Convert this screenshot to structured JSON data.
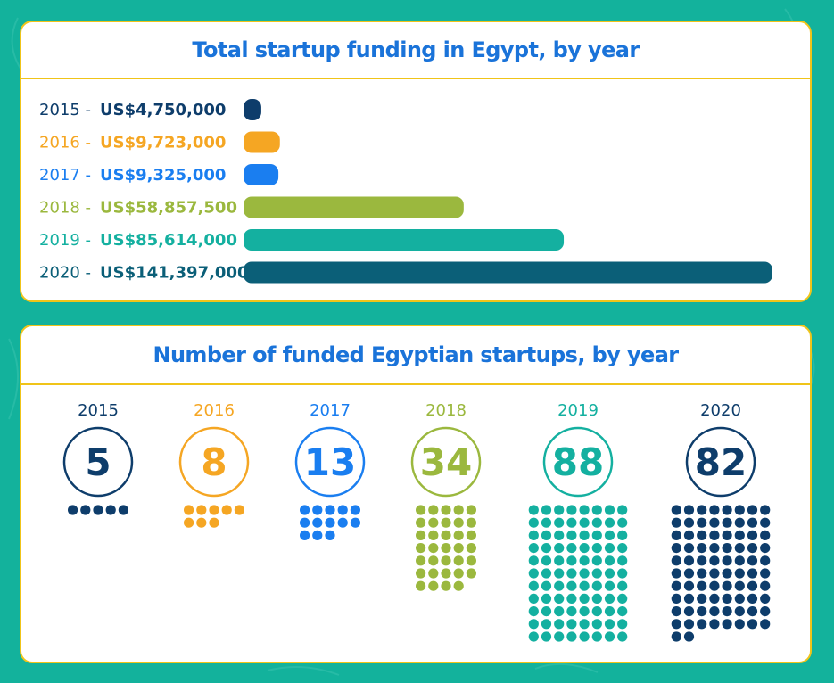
{
  "colors": {
    "background": "#13b29c",
    "border": "#f0c419",
    "title": "#1a73d9",
    "y2015": "#0e3d6b",
    "y2016": "#f5a623",
    "y2017": "#1a7ef0",
    "y2018": "#9bb83e",
    "y2019": "#14b0a0",
    "y2020": "#0b5f78",
    "y2020_dots": "#0e3d6b"
  },
  "chart_data": [
    {
      "type": "bar",
      "orientation": "horizontal",
      "title": "Total startup funding in Egypt, by year",
      "categories": [
        "2015",
        "2016",
        "2017",
        "2018",
        "2019",
        "2020"
      ],
      "values": [
        4750000,
        9723000,
        9325000,
        58857500,
        85614000,
        141397000
      ],
      "value_labels": [
        "US$4,750,000",
        "US$9,723,000",
        "US$9,325,000",
        "US$58,857,500",
        "US$85,614,000",
        "US$141,397,000"
      ],
      "unit": "US$",
      "xlim": [
        0,
        141397000
      ],
      "grid": false,
      "legend": "none"
    },
    {
      "type": "pictogram",
      "title": "Number of funded Egyptian startups, by year",
      "categories": [
        "2015",
        "2016",
        "2017",
        "2018",
        "2019",
        "2020"
      ],
      "values": [
        5,
        8,
        13,
        34,
        88,
        82
      ],
      "dots_per_row": [
        5,
        5,
        5,
        5,
        8,
        8
      ],
      "grid": false,
      "legend": "none"
    }
  ]
}
